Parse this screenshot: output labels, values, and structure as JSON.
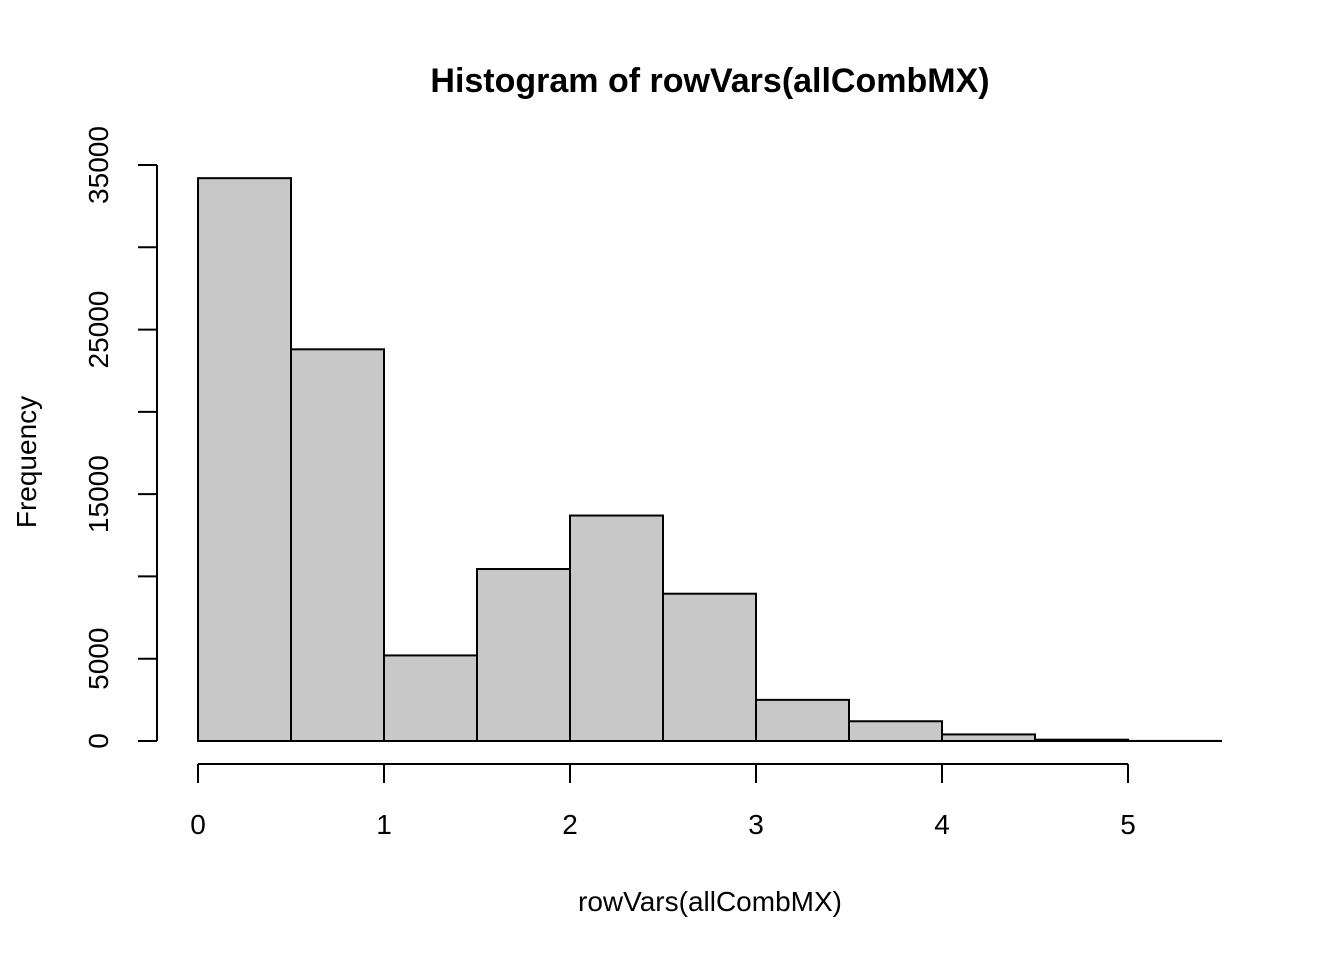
{
  "chart_data": {
    "type": "bar",
    "title": "Histogram of rowVars(allCombMX)",
    "xlabel": "rowVars(allCombMX)",
    "ylabel": "Frequency",
    "bar_color": "#c8c8c8",
    "edge_color": "#000000",
    "xlim": [
      0,
      5.5
    ],
    "ylim": [
      0,
      35000
    ],
    "x_ticks": [
      0,
      1,
      2,
      3,
      4,
      5
    ],
    "x_tick_labels": [
      "0",
      "1",
      "2",
      "3",
      "4",
      "5"
    ],
    "y_ticks": [
      0,
      5000,
      10000,
      15000,
      20000,
      25000,
      30000,
      35000
    ],
    "y_tick_labels": [
      "0",
      "5000",
      "",
      "15000",
      "",
      "25000",
      "",
      "35000"
    ],
    "grid": false,
    "bins": [
      {
        "x0": 0.0,
        "x1": 0.5,
        "count": 34200
      },
      {
        "x0": 0.5,
        "x1": 1.0,
        "count": 23800
      },
      {
        "x0": 1.0,
        "x1": 1.5,
        "count": 5200
      },
      {
        "x0": 1.5,
        "x1": 2.0,
        "count": 10450
      },
      {
        "x0": 2.0,
        "x1": 2.5,
        "count": 13700
      },
      {
        "x0": 2.5,
        "x1": 3.0,
        "count": 8950
      },
      {
        "x0": 3.0,
        "x1": 3.5,
        "count": 2500
      },
      {
        "x0": 3.5,
        "x1": 4.0,
        "count": 1200
      },
      {
        "x0": 4.0,
        "x1": 4.5,
        "count": 400
      },
      {
        "x0": 4.5,
        "x1": 5.0,
        "count": 80
      },
      {
        "x0": 5.0,
        "x1": 5.5,
        "count": 5
      }
    ]
  }
}
